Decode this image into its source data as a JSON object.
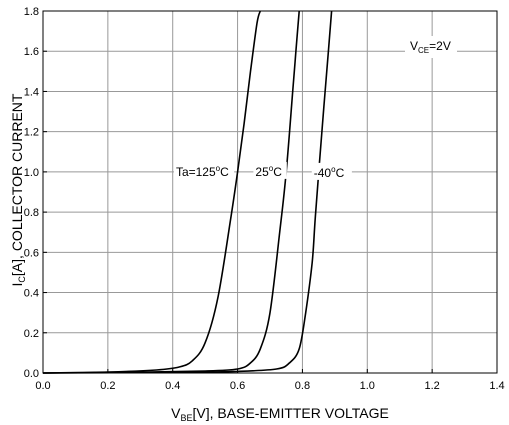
{
  "chart_data": {
    "type": "line",
    "title": "",
    "xlabel": {
      "main": "V",
      "sub": "BE",
      "rest": "[V], BASE-EMITTER VOLTAGE"
    },
    "ylabel": {
      "main": "I",
      "sub": "C",
      "rest": "[A], COLLECTOR CURRENT"
    },
    "xlim": [
      0.0,
      1.4
    ],
    "ylim": [
      0.0,
      1.8
    ],
    "xticks": [
      "0.0",
      "0.2",
      "0.4",
      "0.6",
      "0.8",
      "1.0",
      "1.2",
      "1.4"
    ],
    "yticks": [
      "0.0",
      "0.2",
      "0.4",
      "0.6",
      "0.8",
      "1.0",
      "1.2",
      "1.4",
      "1.6",
      "1.8"
    ],
    "grid": true,
    "condition": {
      "main": "V",
      "sub": "CE",
      "rest": "=2V"
    },
    "series": [
      {
        "name": "Ta=125°C",
        "label": {
          "pre": "Ta=125",
          "sup": "o",
          "post": "C"
        },
        "x": [
          0.0,
          0.2,
          0.35,
          0.42,
          0.46,
          0.5,
          0.54,
          0.58,
          0.6,
          0.62,
          0.64,
          0.66,
          0.67
        ],
        "y": [
          0.0,
          0.005,
          0.015,
          0.03,
          0.06,
          0.15,
          0.38,
          0.78,
          1.0,
          1.24,
          1.5,
          1.74,
          1.8
        ]
      },
      {
        "name": "25°C",
        "label": {
          "pre": "25",
          "sup": "o",
          "post": "C"
        },
        "x": [
          0.0,
          0.3,
          0.5,
          0.6,
          0.64,
          0.67,
          0.7,
          0.73,
          0.75,
          0.77,
          0.78,
          0.79
        ],
        "y": [
          0.0,
          0.004,
          0.01,
          0.02,
          0.05,
          0.12,
          0.3,
          0.7,
          1.0,
          1.4,
          1.6,
          1.8
        ]
      },
      {
        "name": "-40°C",
        "label": {
          "pre": "-40",
          "sup": "o",
          "post": "C"
        },
        "x": [
          0.0,
          0.4,
          0.6,
          0.72,
          0.76,
          0.79,
          0.81,
          0.83,
          0.84,
          0.86,
          0.88,
          0.89
        ],
        "y": [
          0.0,
          0.003,
          0.008,
          0.02,
          0.05,
          0.12,
          0.3,
          0.55,
          0.78,
          1.2,
          1.6,
          1.8
        ]
      }
    ]
  }
}
